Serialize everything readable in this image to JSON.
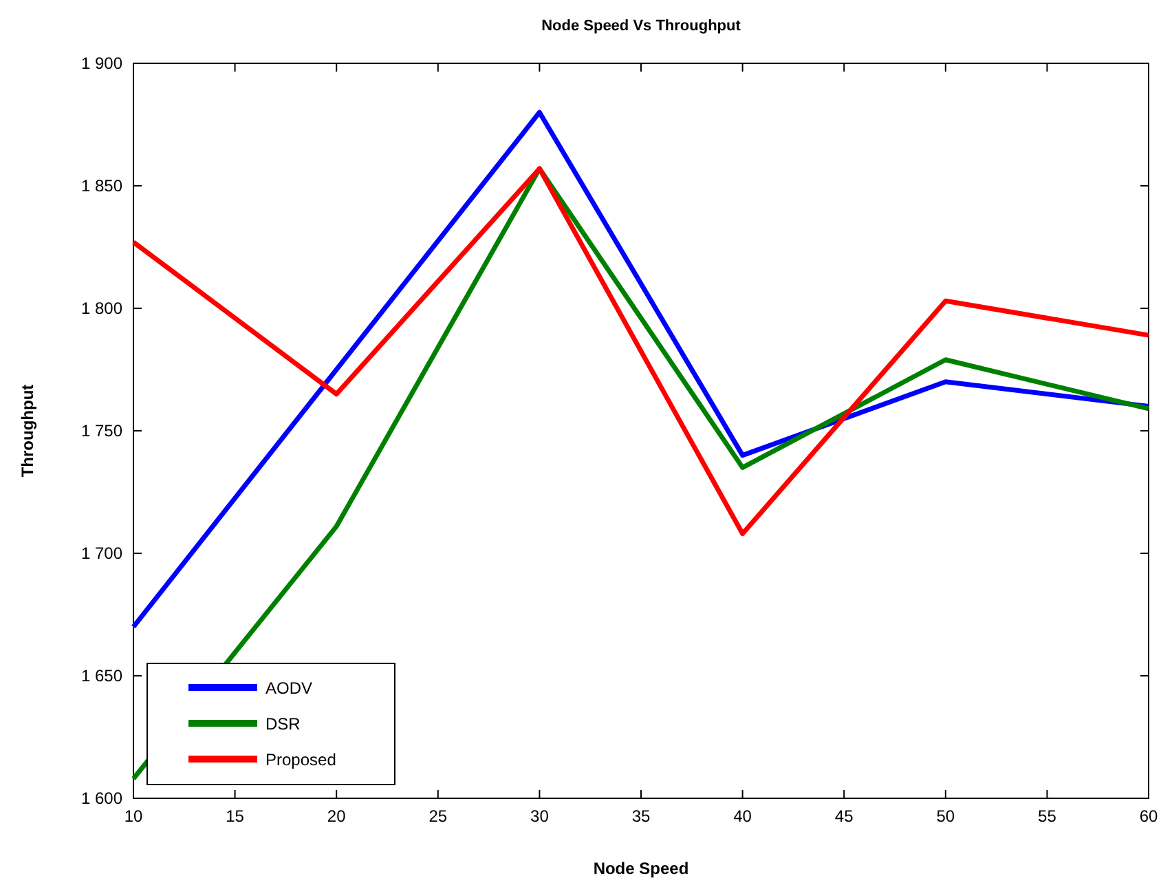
{
  "chart_data": {
    "type": "line",
    "title": "Node Speed Vs Throughput",
    "xlabel": "Node Speed",
    "ylabel": "Throughput",
    "x": [
      10,
      20,
      30,
      40,
      50,
      60
    ],
    "series": [
      {
        "name": "AODV",
        "color": "#0000ff",
        "values": [
          1670,
          1775,
          1880,
          1740,
          1770,
          1760
        ]
      },
      {
        "name": "DSR",
        "color": "#008000",
        "values": [
          1608,
          1711,
          1857,
          1735,
          1779,
          1759
        ]
      },
      {
        "name": "Proposed",
        "color": "#ff0000",
        "values": [
          1827,
          1765,
          1857,
          1708,
          1803,
          1789
        ]
      }
    ],
    "xlim": [
      10,
      60
    ],
    "xticks": [
      10,
      15,
      20,
      25,
      30,
      35,
      40,
      45,
      50,
      55,
      60
    ],
    "ylim": [
      1600,
      1900
    ],
    "yticks": [
      {
        "value": 1600,
        "label": "1 600"
      },
      {
        "value": 1650,
        "label": "1 650"
      },
      {
        "value": 1700,
        "label": "1 700"
      },
      {
        "value": 1750,
        "label": "1 750"
      },
      {
        "value": 1800,
        "label": "1 800"
      },
      {
        "value": 1850,
        "label": "1 850"
      },
      {
        "value": 1900,
        "label": "1 900"
      }
    ],
    "grid": false,
    "legend": "bottom left",
    "marker": "none",
    "line_style": "solid"
  }
}
